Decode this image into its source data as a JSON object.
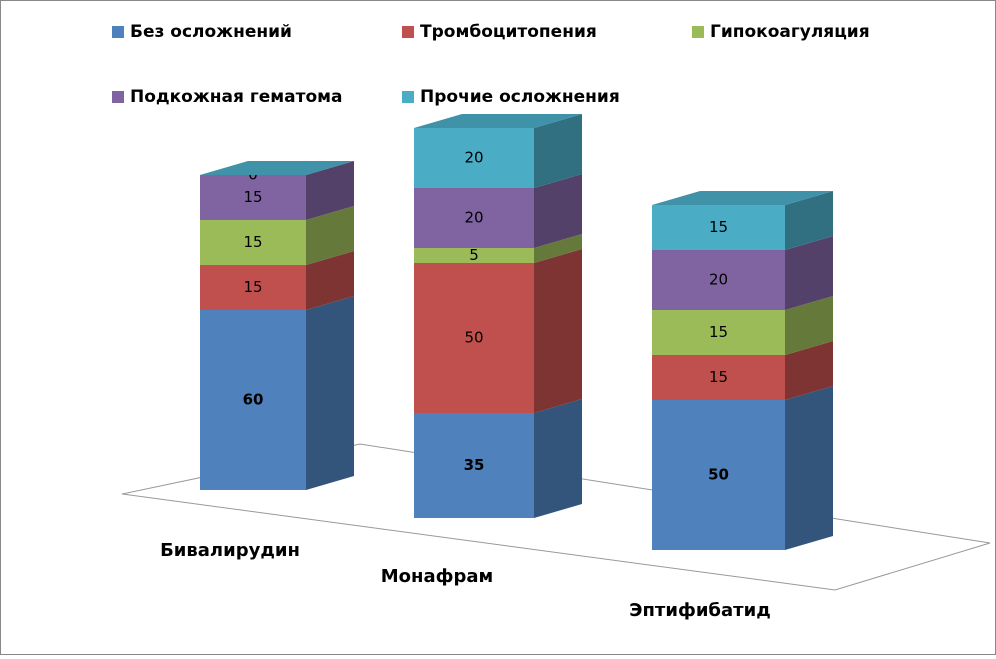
{
  "chart_data": {
    "type": "bar3d_stacked",
    "categories": [
      "Бивалирудин",
      "Монафрам",
      "Эптифибатид"
    ],
    "series": [
      {
        "name": "Без осложнений",
        "color": "#4f81bd",
        "values": [
          60,
          35,
          50
        ]
      },
      {
        "name": "Тромбоцитопения",
        "color": "#c0504d",
        "values": [
          15,
          50,
          15
        ]
      },
      {
        "name": "Гипокоагуляция",
        "color": "#9bbb59",
        "values": [
          15,
          5,
          15
        ]
      },
      {
        "name": "Подкожная гематома",
        "color": "#8064a2",
        "values": [
          15,
          20,
          20
        ]
      },
      {
        "name": "Прочие осложнения",
        "color": "#4bacc6",
        "values": [
          0,
          20,
          15
        ]
      }
    ]
  }
}
